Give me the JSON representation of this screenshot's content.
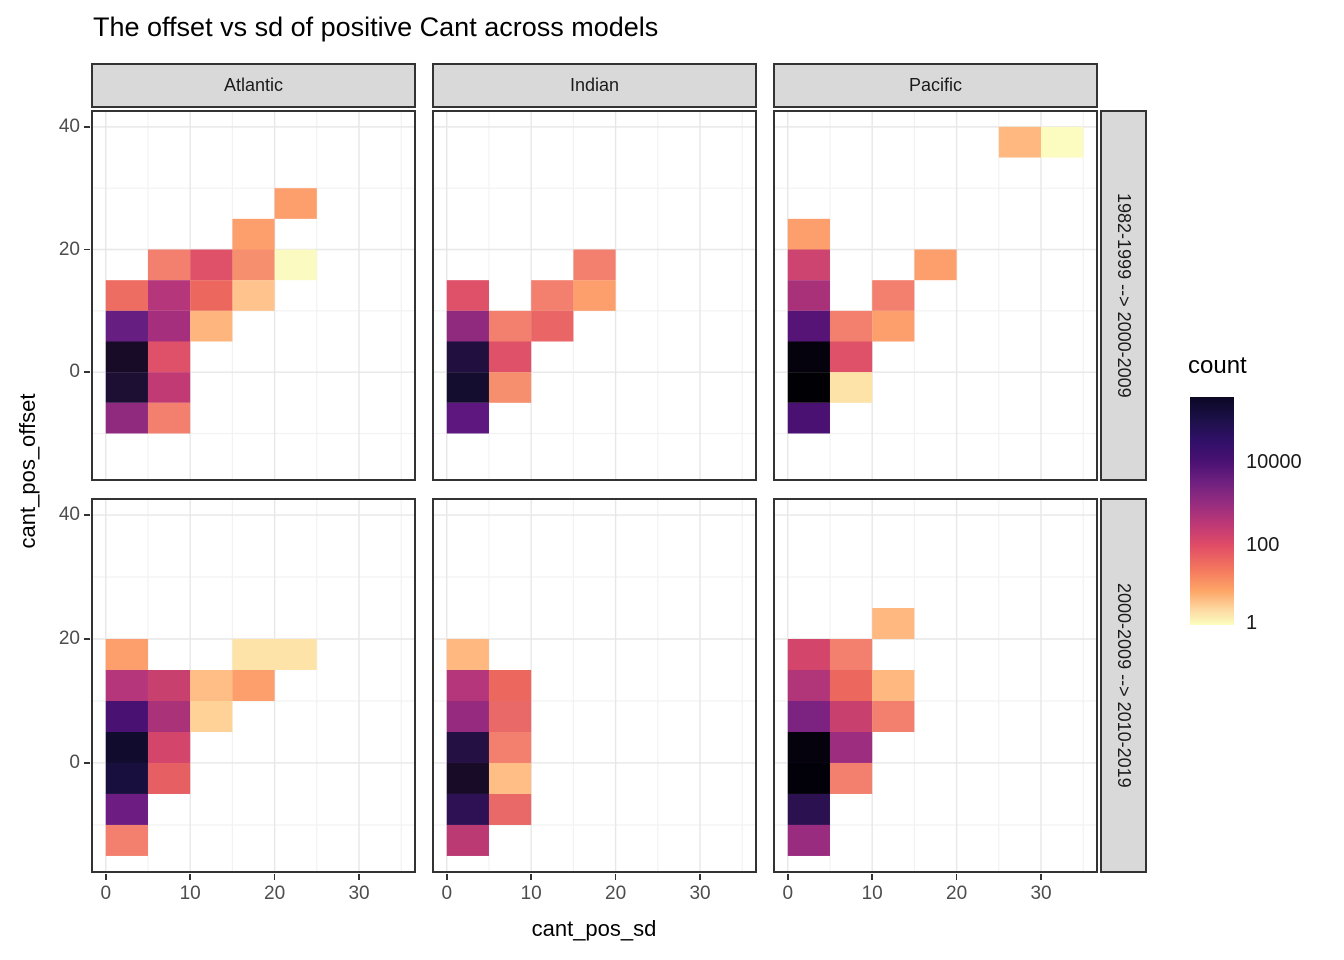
{
  "title": "The offset vs sd of positive Cant across models",
  "facets": {
    "columns": [
      "Atlantic",
      "Indian",
      "Pacific"
    ],
    "rows": [
      "1982-1999 --> 2000-2009",
      "2000-2009 --> 2010-2019"
    ]
  },
  "legend": {
    "title": "count",
    "labels": [
      "10000",
      "100",
      "1"
    ],
    "tick_pos": [
      0.285,
      0.65,
      0.99
    ],
    "notch_pos": [
      0.285,
      0.65
    ],
    "gradient": [
      {
        "p": 0.0,
        "c": "#0b0724"
      },
      {
        "p": 0.1,
        "c": "#1c1048"
      },
      {
        "p": 0.2,
        "c": "#32106a"
      },
      {
        "p": 0.285,
        "c": "#4a1173"
      },
      {
        "p": 0.38,
        "c": "#712180"
      },
      {
        "p": 0.48,
        "c": "#9c2e7f"
      },
      {
        "p": 0.57,
        "c": "#c23a74"
      },
      {
        "p": 0.65,
        "c": "#e04c67"
      },
      {
        "p": 0.75,
        "c": "#f3745e"
      },
      {
        "p": 0.85,
        "c": "#fda567"
      },
      {
        "p": 0.93,
        "c": "#fdd7a0"
      },
      {
        "p": 1.0,
        "c": "#fcfdbf"
      }
    ]
  },
  "chart_data": {
    "type": "heatmap",
    "subtype": "2d-binned-histogram",
    "title": "The offset vs sd of positive Cant across models",
    "xlabel": "cant_pos_sd",
    "ylabel": "cant_pos_offset",
    "fill_label": "count",
    "fill_scale": "log, pale yellow (1) to black (>10000), magma reversed",
    "bin_width": 5,
    "bin_height": 5,
    "x_ticks": [
      0,
      10,
      20,
      30
    ],
    "y_ticks": [
      0,
      20,
      40
    ],
    "x_domain": [
      -1.75,
      36.75
    ],
    "y_domain": [
      -17.75,
      42.75
    ],
    "x_minor": [
      5,
      15,
      25,
      35
    ],
    "y_minor": [
      -10,
      10,
      30
    ],
    "grid": {
      "major_color": "#e7e7e7",
      "minor_color": "#f2f2f2"
    },
    "panel_border_color": "#333333",
    "panels": [
      {
        "column": "Atlantic",
        "row": "1982-1999 --> 2000-2009",
        "tiles": [
          [
            20,
            25,
            "#fd9e6d"
          ],
          [
            15,
            20,
            "#fd9e6d"
          ],
          [
            5,
            15,
            "#f3806f"
          ],
          [
            10,
            15,
            "#df5168"
          ],
          [
            15,
            15,
            "#f68f6d"
          ],
          [
            20,
            15,
            "#fbfac0"
          ],
          [
            0,
            10,
            "#ed6d62"
          ],
          [
            5,
            10,
            "#b5367a"
          ],
          [
            10,
            10,
            "#ec685f"
          ],
          [
            15,
            10,
            "#ffc38d"
          ],
          [
            0,
            5,
            "#661f80"
          ],
          [
            5,
            5,
            "#a52f7d"
          ],
          [
            10,
            5,
            "#ffb67e"
          ],
          [
            0,
            0,
            "#170b28"
          ],
          [
            5,
            0,
            "#df5168"
          ],
          [
            0,
            -5,
            "#1d0f33"
          ],
          [
            5,
            -5,
            "#c23a74"
          ],
          [
            0,
            -10,
            "#8f2a7f"
          ],
          [
            5,
            -10,
            "#f3806f"
          ]
        ]
      },
      {
        "column": "Indian",
        "row": "1982-1999 --> 2000-2009",
        "tiles": [
          [
            15,
            15,
            "#f3806f"
          ],
          [
            0,
            10,
            "#df5168"
          ],
          [
            10,
            10,
            "#f3806f"
          ],
          [
            15,
            10,
            "#fd9e6d"
          ],
          [
            0,
            5,
            "#8f2a7f"
          ],
          [
            5,
            5,
            "#f3806f"
          ],
          [
            10,
            5,
            "#ea6565"
          ],
          [
            0,
            0,
            "#21103f"
          ],
          [
            5,
            0,
            "#df5168"
          ],
          [
            0,
            -5,
            "#150d30"
          ],
          [
            5,
            -5,
            "#f68f6d"
          ],
          [
            0,
            -10,
            "#5d177f"
          ]
        ]
      },
      {
        "column": "Pacific",
        "row": "1982-1999 --> 2000-2009",
        "tiles": [
          [
            25,
            35,
            "#ffb87f"
          ],
          [
            30,
            35,
            "#fcfbc0"
          ],
          [
            0,
            20,
            "#fd9e6d"
          ],
          [
            0,
            15,
            "#ce4470"
          ],
          [
            15,
            15,
            "#fd9e6d"
          ],
          [
            0,
            10,
            "#a9317a"
          ],
          [
            10,
            10,
            "#f3806f"
          ],
          [
            0,
            5,
            "#561477"
          ],
          [
            5,
            5,
            "#f3806f"
          ],
          [
            10,
            5,
            "#fd9e6d"
          ],
          [
            0,
            0,
            "#05020e"
          ],
          [
            5,
            0,
            "#df5168"
          ],
          [
            0,
            -5,
            "#010005"
          ],
          [
            5,
            -5,
            "#fde3a8"
          ],
          [
            0,
            -10,
            "#4a1173"
          ]
        ]
      },
      {
        "column": "Atlantic",
        "row": "2000-2009 --> 2010-2019",
        "tiles": [
          [
            0,
            15,
            "#fd9e6d"
          ],
          [
            15,
            15,
            "#fde3a8"
          ],
          [
            20,
            15,
            "#fde3a8"
          ],
          [
            0,
            10,
            "#b5367a"
          ],
          [
            5,
            10,
            "#c8416e"
          ],
          [
            10,
            10,
            "#ffbe85"
          ],
          [
            15,
            10,
            "#fd9e6d"
          ],
          [
            0,
            5,
            "#491172"
          ],
          [
            5,
            5,
            "#a93279"
          ],
          [
            10,
            5,
            "#ffd298"
          ],
          [
            0,
            0,
            "#110b2d"
          ],
          [
            5,
            0,
            "#d4456c"
          ],
          [
            0,
            -5,
            "#190f3e"
          ],
          [
            5,
            -5,
            "#e55f63"
          ],
          [
            0,
            -10,
            "#6d1d81"
          ],
          [
            0,
            -15,
            "#f3806f"
          ]
        ]
      },
      {
        "column": "Indian",
        "row": "2000-2009 --> 2010-2019",
        "tiles": [
          [
            0,
            15,
            "#ffb87f"
          ],
          [
            0,
            10,
            "#b5367a"
          ],
          [
            5,
            10,
            "#ec685f"
          ],
          [
            0,
            5,
            "#952a7e"
          ],
          [
            5,
            5,
            "#e96868"
          ],
          [
            0,
            0,
            "#251043"
          ],
          [
            5,
            0,
            "#f3806f"
          ],
          [
            0,
            -5,
            "#170b28"
          ],
          [
            5,
            -5,
            "#ffbe85"
          ],
          [
            0,
            -10,
            "#2e1155"
          ],
          [
            5,
            -10,
            "#e96868"
          ],
          [
            0,
            -15,
            "#bc3a73"
          ]
        ]
      },
      {
        "column": "Pacific",
        "row": "2000-2009 --> 2010-2019",
        "tiles": [
          [
            10,
            20,
            "#ffb87f"
          ],
          [
            0,
            15,
            "#d4456c"
          ],
          [
            5,
            15,
            "#f3806f"
          ],
          [
            0,
            10,
            "#b13579"
          ],
          [
            5,
            10,
            "#ec685f"
          ],
          [
            10,
            10,
            "#ffb87f"
          ],
          [
            0,
            5,
            "#7c2382"
          ],
          [
            5,
            5,
            "#c8416e"
          ],
          [
            10,
            5,
            "#f3806f"
          ],
          [
            0,
            0,
            "#05020e"
          ],
          [
            5,
            0,
            "#9d2d7f"
          ],
          [
            0,
            -5,
            "#02010a"
          ],
          [
            5,
            -5,
            "#f3806f"
          ],
          [
            0,
            -10,
            "#2c1151"
          ],
          [
            0,
            -15,
            "#992c7e"
          ]
        ]
      }
    ]
  }
}
